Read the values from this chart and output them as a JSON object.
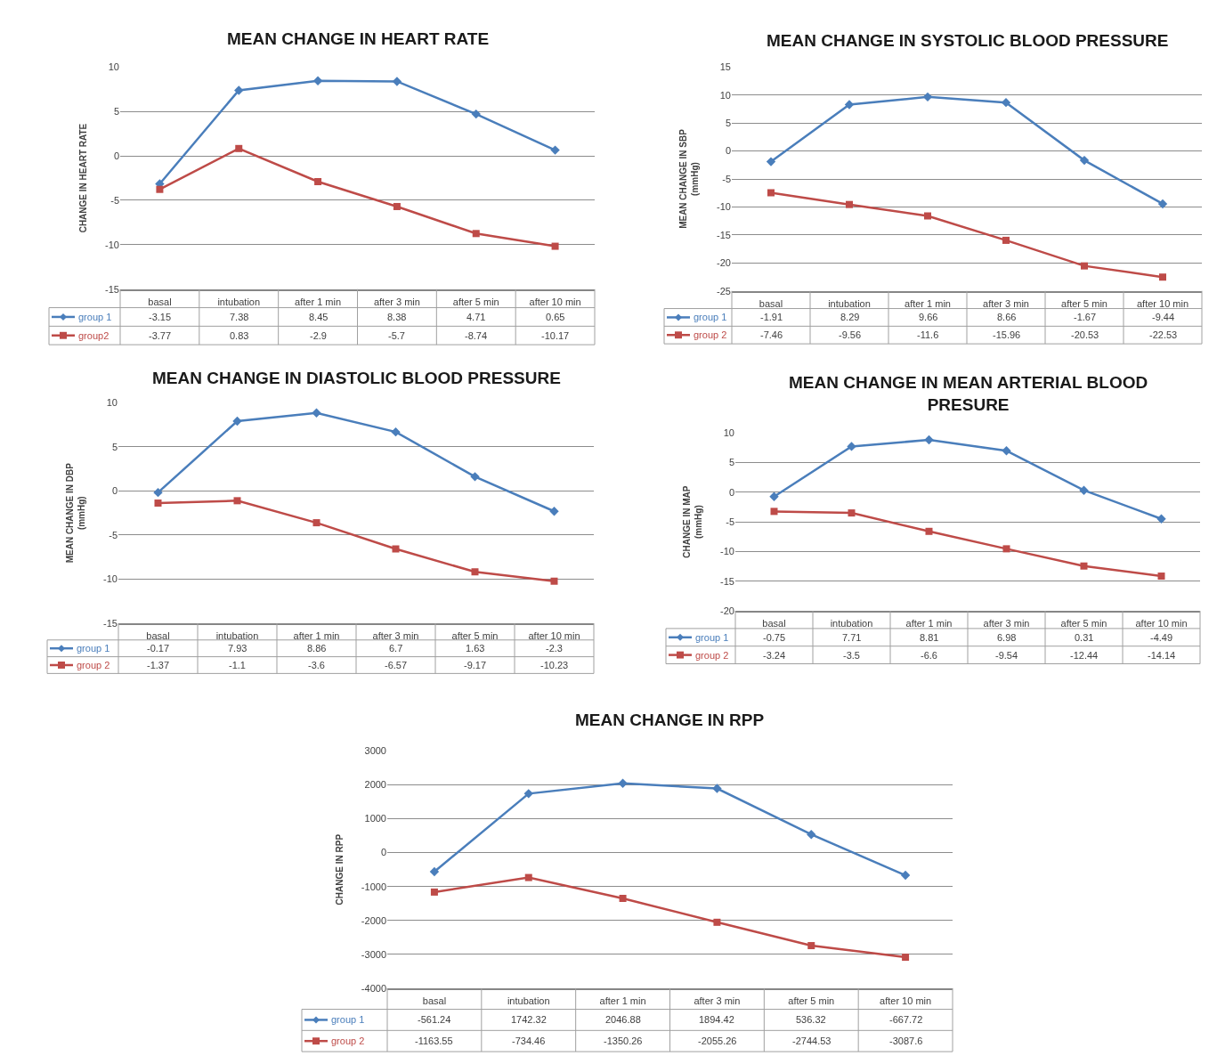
{
  "chart_data": [
    {
      "type": "line",
      "title": "MEAN CHANGE IN HEART RATE",
      "ylabel": "CHANGE IN HEART RATE",
      "categories": [
        "basal",
        "intubation",
        "after 1 min",
        "after 3 min",
        "after 5 min",
        "after 10 min"
      ],
      "ylim": [
        -15,
        10
      ],
      "yticks": [
        -15,
        -10,
        -5,
        0,
        5,
        10
      ],
      "grid": "y",
      "legend": "bottom left",
      "data_labels": true,
      "series": [
        {
          "name": "group 1",
          "color": "#4a7ebb",
          "marker": "diamond",
          "values": [
            -3.15,
            7.38,
            8.45,
            8.38,
            4.71,
            0.65
          ]
        },
        {
          "name": "group2",
          "color": "#be4b48",
          "marker": "square",
          "values": [
            -3.77,
            0.83,
            -2.9,
            -5.7,
            -8.74,
            -10.17
          ]
        }
      ]
    },
    {
      "type": "line",
      "title": "MEAN CHANGE IN SYSTOLIC BLOOD PRESSURE",
      "ylabel": "MEAN CHANGE IN SBP (mmHg)",
      "categories": [
        "basal",
        "intubation",
        "after 1 min",
        "after 3 min",
        "after 5 min",
        "after 10 min"
      ],
      "ylim": [
        -25,
        15
      ],
      "yticks": [
        -25,
        -20,
        -15,
        -10,
        -5,
        0,
        5,
        10,
        15
      ],
      "grid": "y",
      "legend": "bottom left",
      "data_labels": true,
      "series": [
        {
          "name": "group 1",
          "color": "#4a7ebb",
          "marker": "diamond",
          "values": [
            -1.91,
            8.29,
            9.66,
            8.66,
            -1.67,
            -9.44
          ]
        },
        {
          "name": "group 2",
          "color": "#be4b48",
          "marker": "square",
          "values": [
            -7.46,
            -9.56,
            -11.6,
            -15.96,
            -20.53,
            -22.53
          ]
        }
      ]
    },
    {
      "type": "line",
      "title": "MEAN CHANGE IN DIASTOLIC BLOOD PRESSURE",
      "ylabel": "MEAN CHANGE IN DBP (mmHg)",
      "categories": [
        "basal",
        "intubation",
        "after 1 min",
        "after 3 min",
        "after 5 min",
        "after 10 min"
      ],
      "ylim": [
        -15,
        10
      ],
      "yticks": [
        -15,
        -10,
        -5,
        0,
        5,
        10
      ],
      "grid": "y",
      "legend": "bottom left",
      "data_labels": true,
      "series": [
        {
          "name": "group 1",
          "color": "#4a7ebb",
          "marker": "diamond",
          "values": [
            -0.17,
            7.93,
            8.86,
            6.7,
            1.63,
            -2.3
          ]
        },
        {
          "name": "group 2",
          "color": "#be4b48",
          "marker": "square",
          "values": [
            -1.37,
            -1.1,
            -3.6,
            -6.57,
            -9.17,
            -10.23
          ]
        }
      ]
    },
    {
      "type": "line",
      "title": "MEAN CHANGE IN MEAN ARTERIAL BLOOD PRESURE",
      "ylabel": "CHANGE IN MAP (mmHg)",
      "categories": [
        "basal",
        "intubation",
        "after 1 min",
        "after 3 min",
        "after 5 min",
        "after 10 min"
      ],
      "ylim": [
        -20,
        10
      ],
      "yticks": [
        -20,
        -15,
        -10,
        -5,
        0,
        5,
        10
      ],
      "grid": "y",
      "legend": "bottom left",
      "data_labels": true,
      "series": [
        {
          "name": "group 1",
          "color": "#4a7ebb",
          "marker": "diamond",
          "values": [
            -0.75,
            7.71,
            8.81,
            6.98,
            0.31,
            -4.49
          ]
        },
        {
          "name": "group 2",
          "color": "#be4b48",
          "marker": "square",
          "values": [
            -3.24,
            -3.5,
            -6.6,
            -9.54,
            -12.44,
            -14.14
          ]
        }
      ]
    },
    {
      "type": "line",
      "title": "MEAN CHANGE IN RPP",
      "ylabel": "CHANGE IN RPP",
      "categories": [
        "basal",
        "intubation",
        "after 1 min",
        "after 3 min",
        "after 5 min",
        "after 10 min"
      ],
      "ylim": [
        -4000,
        3000
      ],
      "yticks": [
        -4000,
        -3000,
        -2000,
        -1000,
        0,
        1000,
        2000,
        3000
      ],
      "grid": "y",
      "legend": "bottom left",
      "data_labels": true,
      "series": [
        {
          "name": "group 1",
          "color": "#4a7ebb",
          "marker": "diamond",
          "values": [
            -561.24,
            1742.32,
            2046.88,
            1894.42,
            536.32,
            -667.72
          ]
        },
        {
          "name": "group 2",
          "color": "#be4b48",
          "marker": "square",
          "values": [
            -1163.55,
            -734.46,
            -1350.26,
            -2055.26,
            -2744.53,
            -3087.6
          ]
        }
      ]
    }
  ]
}
